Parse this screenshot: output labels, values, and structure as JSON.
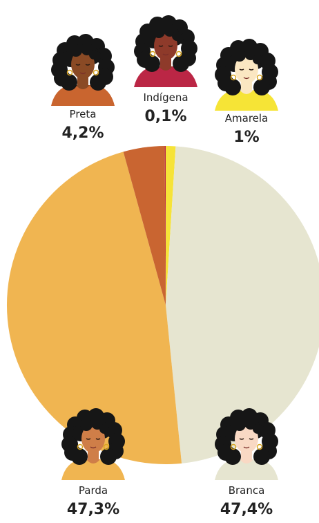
{
  "chart_data": {
    "type": "pie",
    "categories": [
      "Amarela",
      "Branca",
      "Parda",
      "Preta",
      "Indígena"
    ],
    "values": [
      1,
      47.4,
      47.3,
      4.2,
      0.1
    ],
    "value_labels": [
      "1%",
      "47,4%",
      "47,3%",
      "4,2%",
      "0,1%"
    ],
    "title": "",
    "legend": "none",
    "grid": false
  },
  "colors": {
    "Amarela": "#f6e338",
    "Branca": "#e6e5d0",
    "Parda": "#f0b551",
    "Preta": "#c96531",
    "Indígena": "#ba2642"
  },
  "figures": [
    {
      "name": "Preta",
      "skin": "#8a4a25",
      "shirt": "#c9652f",
      "icon": "person-preta-icon"
    },
    {
      "name": "Indígena",
      "skin": "#8e3a2a",
      "shirt": "#bb2645",
      "icon": "person-indigena-icon"
    },
    {
      "name": "Amarela",
      "skin": "#fbe7c2",
      "shirt": "#f6e436",
      "icon": "person-amarela-icon"
    },
    {
      "name": "Parda",
      "skin": "#cf7e48",
      "shirt": "#f0b551",
      "icon": "person-parda-icon"
    },
    {
      "name": "Branca",
      "skin": "#f9d9c4",
      "shirt": "#e6e5d0",
      "icon": "person-branca-icon"
    }
  ]
}
